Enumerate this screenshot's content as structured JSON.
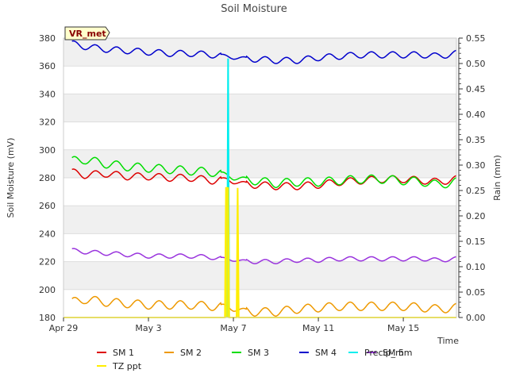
{
  "chart_data": {
    "type": "line",
    "title": "Soil Moisture",
    "xlabel": "Time",
    "ylabel": "Soil Moisture (mV)",
    "y2label": "Rain (mm)",
    "station_label": "VR_met",
    "x_range_days": [
      0,
      18.5
    ],
    "x_ticks": [
      {
        "day": 0,
        "label": "Apr 29"
      },
      {
        "day": 4,
        "label": "May 3"
      },
      {
        "day": 8,
        "label": "May 7"
      },
      {
        "day": 12,
        "label": "May 11"
      },
      {
        "day": 16,
        "label": "May 15"
      }
    ],
    "ylim": [
      180,
      380
    ],
    "y_ticks": [
      180,
      200,
      220,
      240,
      260,
      280,
      300,
      320,
      340,
      360,
      380
    ],
    "y2lim": [
      0,
      0.55
    ],
    "y2_ticks": [
      "0.00",
      "0.05",
      "0.10",
      "0.15",
      "0.20",
      "0.25",
      "0.30",
      "0.35",
      "0.40",
      "0.45",
      "0.50",
      "0.55"
    ],
    "grid": "horizontal bands",
    "legend_position": "bottom",
    "series": [
      {
        "name": "SM 1",
        "color": "#dd0000",
        "axis": "left",
        "x": [
          0.4,
          1,
          2,
          3,
          4,
          5,
          6,
          7,
          7.7,
          8,
          9,
          10,
          11,
          12,
          13,
          14,
          15,
          16,
          17,
          17.6,
          18.5
        ],
        "y": [
          284,
          282,
          283,
          281,
          281,
          280,
          280,
          278,
          279,
          277,
          275,
          274,
          274,
          275,
          277,
          278,
          279,
          279,
          278,
          277,
          279
        ]
      },
      {
        "name": "SM 2",
        "color": "#ee9900",
        "axis": "left",
        "x": [
          0.4,
          1,
          2,
          3,
          4,
          5,
          6,
          7,
          7.7,
          8,
          9,
          10,
          11,
          12,
          13,
          14,
          15,
          16,
          17,
          17.6,
          18.5
        ],
        "y": [
          191,
          193,
          191,
          190,
          189,
          189,
          189,
          188,
          188,
          186,
          184,
          184,
          186,
          187,
          188,
          188,
          188,
          188,
          187,
          186,
          187
        ]
      },
      {
        "name": "SM 3",
        "color": "#00dd00",
        "axis": "left",
        "x": [
          0.4,
          1,
          2,
          3,
          4,
          5,
          6,
          7,
          7.7,
          8,
          9,
          10,
          11,
          12,
          13,
          14,
          15,
          16,
          17,
          17.6,
          18.5
        ],
        "y": [
          292,
          293,
          290,
          288,
          287,
          286,
          285,
          284,
          282,
          280,
          278,
          276,
          277,
          277,
          278,
          279,
          279,
          278,
          277,
          275,
          277
        ]
      },
      {
        "name": "SM 4",
        "color": "#0000cc",
        "axis": "left",
        "x": [
          0.4,
          1,
          2,
          3,
          4,
          5,
          6,
          7,
          7.7,
          8,
          9,
          10,
          11,
          12,
          13,
          14,
          15,
          16,
          17,
          17.6,
          18.5
        ],
        "y": [
          376,
          374,
          372,
          371,
          370,
          369,
          369,
          368,
          367,
          366,
          365,
          364,
          364,
          366,
          367,
          368,
          368,
          368,
          368,
          367,
          369
        ]
      },
      {
        "name": "SM 5",
        "color": "#9933dd",
        "axis": "left",
        "x": [
          0.4,
          1,
          2,
          3,
          4,
          5,
          6,
          7,
          7.7,
          8,
          9,
          10,
          11,
          12,
          13,
          14,
          15,
          16,
          17,
          17.6,
          18.5
        ],
        "y": [
          228,
          227,
          226,
          225,
          224,
          224,
          224,
          223,
          222,
          221,
          220,
          220,
          221,
          221,
          222,
          222,
          222,
          222,
          222,
          221,
          222
        ]
      },
      {
        "name": "Precip_mm",
        "color": "#00eeee",
        "axis": "right",
        "x": [
          7.7,
          7.75,
          7.8
        ],
        "y": [
          0,
          0.51,
          0
        ]
      },
      {
        "name": "TZ ppt",
        "color": "#ffee00",
        "axis": "right",
        "x": [
          0,
          7.6,
          7.65,
          7.75,
          7.8,
          8.15,
          8.2,
          8.25,
          18.5
        ],
        "y": [
          0,
          0,
          0.255,
          0.255,
          0,
          0,
          0.255,
          0,
          0
        ]
      }
    ]
  }
}
